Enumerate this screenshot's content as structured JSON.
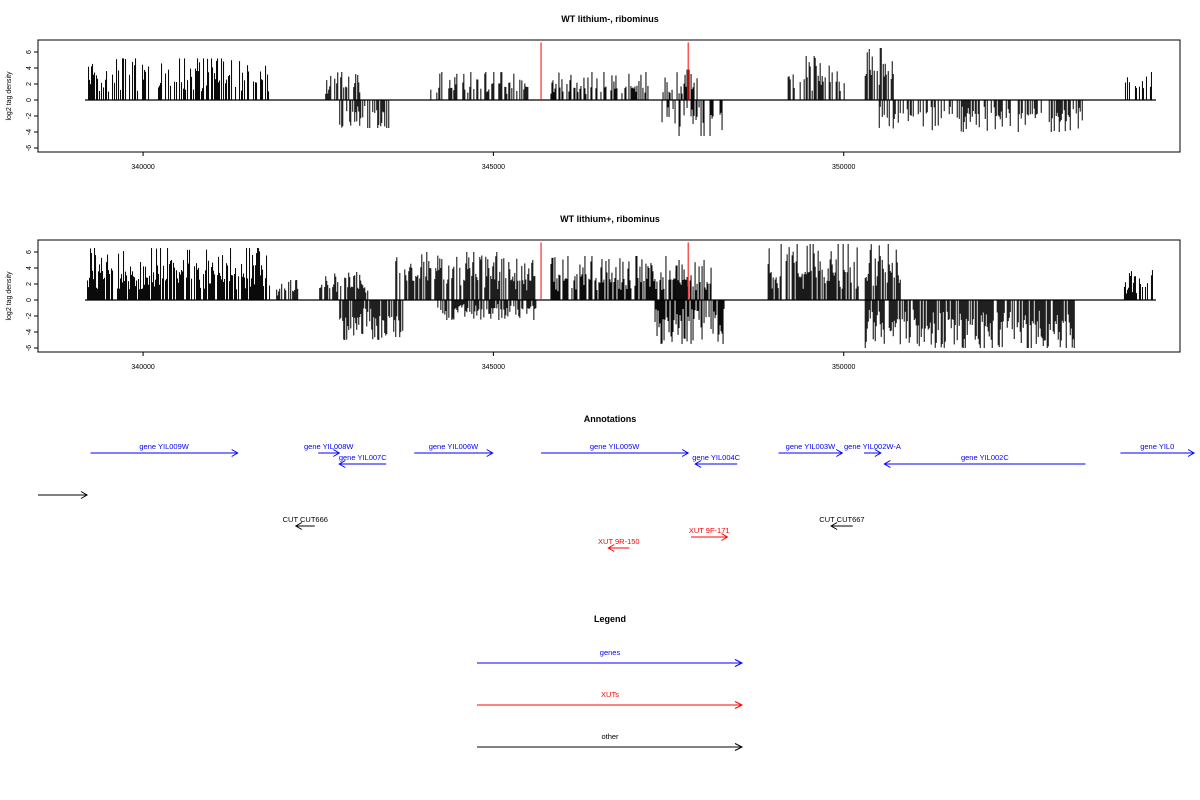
{
  "chart_data": [
    {
      "type": "bar",
      "title": "WT lithium-, ribominus",
      "ylabel": "log2 tag density",
      "xlabel": "",
      "xlim": [
        338500,
        354800
      ],
      "ylim": [
        -6.5,
        7.5
      ],
      "xticks": [
        340000,
        345000,
        350000
      ],
      "yticks": [
        -6,
        -4,
        -2,
        0,
        2,
        4,
        6
      ],
      "grid": false,
      "series": [
        {
          "strand": "+",
          "color": "#000000",
          "segments": [
            {
              "start": 339200,
              "end": 341800,
              "maxY": 5.2
            },
            {
              "start": 342600,
              "end": 343100,
              "maxY": 3.5
            },
            {
              "start": 344100,
              "end": 345500,
              "maxY": 3.5
            },
            {
              "start": 345800,
              "end": 347200,
              "maxY": 3.5
            },
            {
              "start": 347400,
              "end": 347900,
              "maxY": 3.8
            },
            {
              "start": 349200,
              "end": 350000,
              "maxY": 5.5
            },
            {
              "start": 350300,
              "end": 350700,
              "maxY": 6.5
            },
            {
              "start": 354000,
              "end": 354400,
              "maxY": 3.5
            }
          ]
        },
        {
          "strand": "-",
          "color": "#000000",
          "segments": [
            {
              "start": 342800,
              "end": 343500,
              "maxY": 3.5
            },
            {
              "start": 347400,
              "end": 348300,
              "maxY": 4.5
            },
            {
              "start": 350500,
              "end": 353400,
              "maxY": 4.0
            }
          ]
        }
      ],
      "markers": [
        {
          "x": 345680,
          "y": 7.2,
          "color": "#ff0000"
        },
        {
          "x": 347780,
          "y": 7.2,
          "color": "#ff0000"
        }
      ]
    },
    {
      "type": "bar",
      "title": "WT lithium+, ribominus",
      "ylabel": "log2 tag density",
      "xlabel": "",
      "xlim": [
        338500,
        354800
      ],
      "ylim": [
        -6.5,
        7.5
      ],
      "xticks": [
        340000,
        345000,
        350000
      ],
      "yticks": [
        -6,
        -4,
        -2,
        0,
        2,
        4,
        6
      ],
      "grid": false,
      "series": [
        {
          "strand": "+",
          "color": "#000000",
          "segments": [
            {
              "start": 339200,
              "end": 341800,
              "maxY": 6.5
            },
            {
              "start": 341900,
              "end": 342200,
              "maxY": 2.5
            },
            {
              "start": 342500,
              "end": 343200,
              "maxY": 3.5
            },
            {
              "start": 343600,
              "end": 345600,
              "maxY": 6.0
            },
            {
              "start": 345800,
              "end": 347600,
              "maxY": 5.5
            },
            {
              "start": 347600,
              "end": 348100,
              "maxY": 5.0
            },
            {
              "start": 348900,
              "end": 350200,
              "maxY": 7.0
            },
            {
              "start": 350300,
              "end": 350800,
              "maxY": 7.0
            },
            {
              "start": 354000,
              "end": 354400,
              "maxY": 4.0
            }
          ]
        },
        {
          "strand": "-",
          "color": "#000000",
          "segments": [
            {
              "start": 342800,
              "end": 343700,
              "maxY": 5.0
            },
            {
              "start": 344200,
              "end": 345600,
              "maxY": 2.5
            },
            {
              "start": 347300,
              "end": 348300,
              "maxY": 5.5
            },
            {
              "start": 350300,
              "end": 353300,
              "maxY": 6.0
            }
          ]
        }
      ],
      "markers": [
        {
          "x": 345680,
          "y": 7.2,
          "color": "#ff0000"
        },
        {
          "x": 347780,
          "y": 7.2,
          "color": "#ff0000"
        }
      ]
    }
  ],
  "annotations": {
    "title": "Annotations",
    "items": [
      {
        "label": "gene YIL009W",
        "start": 339250,
        "end": 341350,
        "strand": "+",
        "row": 0,
        "color": "#0000ff"
      },
      {
        "label": "gene YIL008W",
        "start": 342500,
        "end": 342800,
        "strand": "+",
        "row": 0,
        "color": "#0000ff"
      },
      {
        "label": "gene YIL007C",
        "start": 342800,
        "end": 343470,
        "strand": "-",
        "row": 1,
        "color": "#0000ff"
      },
      {
        "label": "gene YIL006W",
        "start": 343870,
        "end": 344990,
        "strand": "+",
        "row": 0,
        "color": "#0000ff"
      },
      {
        "label": "gene YIL005W",
        "start": 345680,
        "end": 347780,
        "strand": "+",
        "row": 0,
        "color": "#0000ff"
      },
      {
        "label": "gene YIL004C",
        "start": 347880,
        "end": 348480,
        "strand": "-",
        "row": 1,
        "color": "#0000ff"
      },
      {
        "label": "gene YIL003W",
        "start": 349070,
        "end": 349980,
        "strand": "+",
        "row": 0,
        "color": "#0000ff"
      },
      {
        "label": "gene YIL002W-A",
        "start": 350290,
        "end": 350530,
        "strand": "+",
        "row": 0,
        "color": "#0000ff"
      },
      {
        "label": "gene YIL002C",
        "start": 350580,
        "end": 353450,
        "strand": "-",
        "row": 1,
        "color": "#0000ff"
      },
      {
        "label": "gene YIL0",
        "start": 353950,
        "end": 355000,
        "strand": "+",
        "row": 0,
        "color": "#0000ff"
      },
      {
        "label": "",
        "start": 338500,
        "end": 339200,
        "strand": "+",
        "row": 4,
        "color": "#000000"
      },
      {
        "label": "CUT CUT666",
        "start": 342180,
        "end": 342450,
        "strand": "-",
        "row": 7,
        "color": "#000000"
      },
      {
        "label": "CUT CUT667",
        "start": 349820,
        "end": 350130,
        "strand": "-",
        "row": 7,
        "color": "#000000"
      },
      {
        "label": "XUT 9F-171",
        "start": 347820,
        "end": 348340,
        "strand": "+",
        "row": 8,
        "color": "#ff0000"
      },
      {
        "label": "XUT 9R-150",
        "start": 346640,
        "end": 346940,
        "strand": "-",
        "row": 9,
        "color": "#ff0000"
      }
    ]
  },
  "legend": {
    "title": "Legend",
    "items": [
      {
        "label": "genes",
        "color": "#0000ff"
      },
      {
        "label": "XUTs",
        "color": "#ff0000"
      },
      {
        "label": "other",
        "color": "#000000"
      }
    ]
  }
}
